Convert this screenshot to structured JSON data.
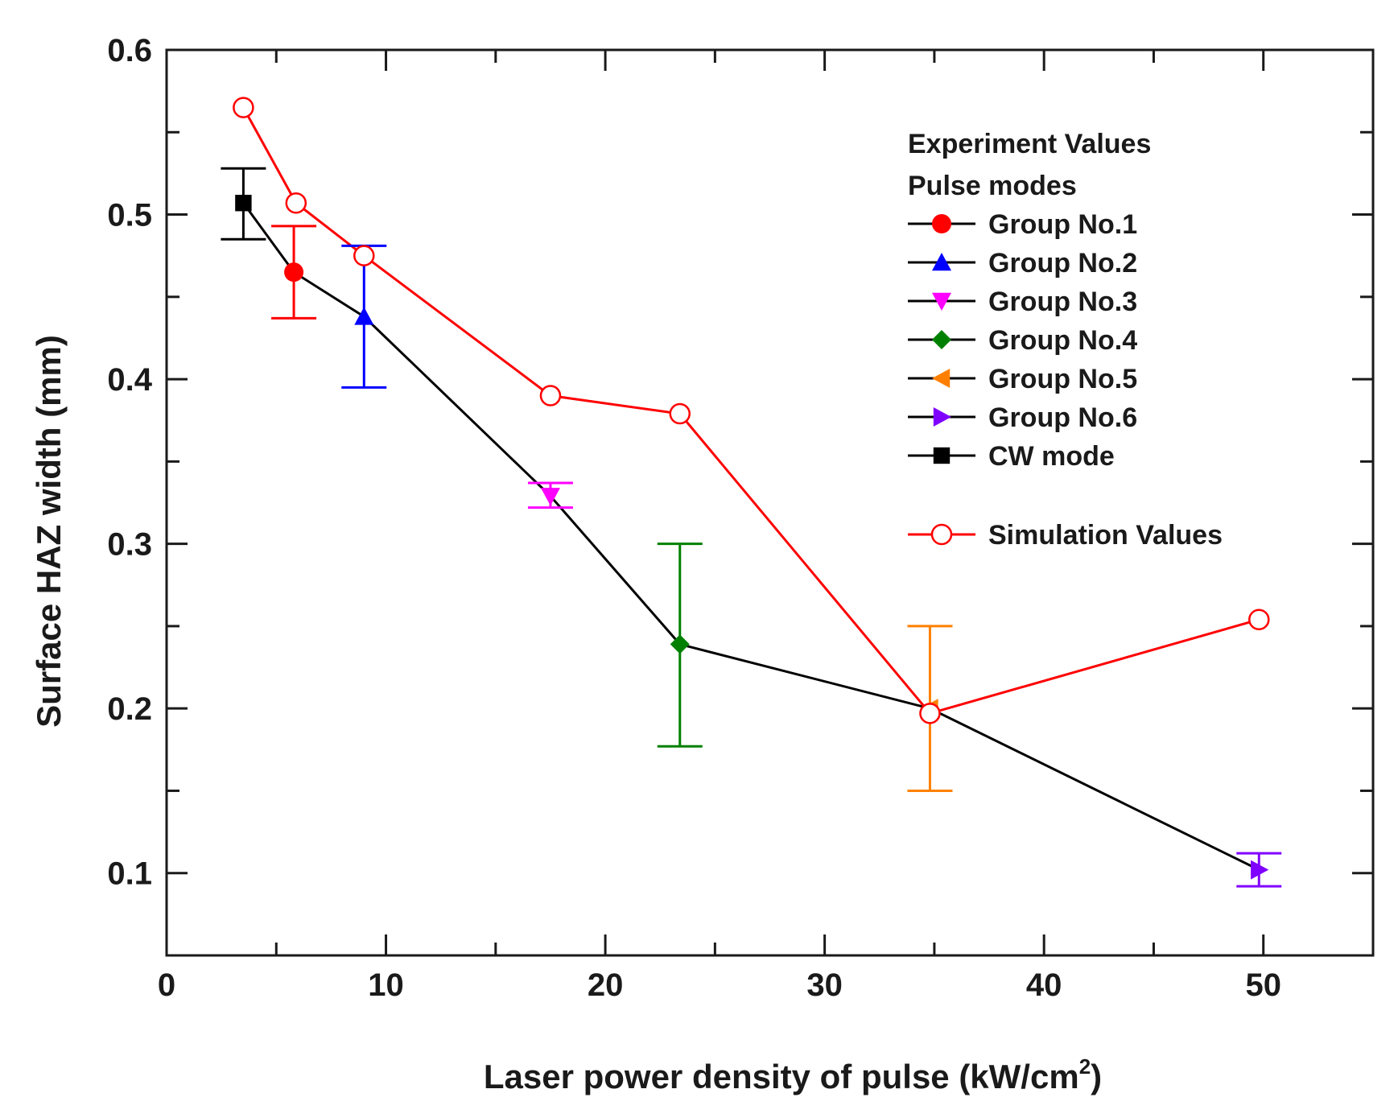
{
  "chart_data": {
    "type": "line",
    "title": "",
    "xlabel": "Laser power density of pulse (kW/cm",
    "xlabel_sup": "2",
    "xlabel_close": ")",
    "ylabel": "Surface HAZ width (mm)",
    "xlim": [
      0,
      55
    ],
    "ylim": [
      0.05,
      0.6
    ],
    "xticks": [
      0,
      10,
      20,
      30,
      40,
      50
    ],
    "xtick_labels": [
      "0",
      "10",
      "20",
      "30",
      "40",
      "50"
    ],
    "yticks": [
      0.1,
      0.2,
      0.3,
      0.4,
      0.5,
      0.6
    ],
    "ytick_labels": [
      "0.1",
      "0.2",
      "0.3",
      "0.4",
      "0.5",
      "0.6"
    ],
    "legend_position": "top-right",
    "legend_headers": [
      "Experiment Values",
      "Pulse modes"
    ],
    "experiment_line_color": "#000000",
    "experiment_points": [
      {
        "name": "CW mode",
        "x": 3.5,
        "y": 0.507,
        "err_low": 0.485,
        "err_high": 0.528,
        "marker": "square",
        "color": "#000000"
      },
      {
        "name": "Group No.1",
        "x": 5.8,
        "y": 0.465,
        "err_low": 0.437,
        "err_high": 0.493,
        "marker": "circle",
        "color": "#ff0000"
      },
      {
        "name": "Group No.2",
        "x": 9.0,
        "y": 0.438,
        "err_low": 0.395,
        "err_high": 0.481,
        "marker": "triangle-up",
        "color": "#0000ff"
      },
      {
        "name": "Group No.3",
        "x": 17.5,
        "y": 0.329,
        "err_low": 0.322,
        "err_high": 0.337,
        "marker": "triangle-down",
        "color": "#ff00ff"
      },
      {
        "name": "Group No.4",
        "x": 23.4,
        "y": 0.239,
        "err_low": 0.177,
        "err_high": 0.3,
        "marker": "diamond",
        "color": "#008000"
      },
      {
        "name": "Group No.5",
        "x": 34.8,
        "y": 0.2,
        "err_low": 0.15,
        "err_high": 0.25,
        "marker": "triangle-left",
        "color": "#ff8000"
      },
      {
        "name": "Group No.6",
        "x": 49.8,
        "y": 0.102,
        "err_low": 0.092,
        "err_high": 0.112,
        "marker": "triangle-right",
        "color": "#8000ff"
      }
    ],
    "legend_order": [
      "Group No.1",
      "Group No.2",
      "Group No.3",
      "Group No.4",
      "Group No.5",
      "Group No.6",
      "CW mode"
    ],
    "simulation": {
      "name": "Simulation Values",
      "color": "#ff0000",
      "marker": "open-circle",
      "x": [
        3.5,
        5.9,
        9.0,
        17.5,
        23.4,
        34.8,
        49.8
      ],
      "y": [
        0.565,
        0.507,
        0.475,
        0.39,
        0.379,
        0.197,
        0.254
      ]
    }
  }
}
